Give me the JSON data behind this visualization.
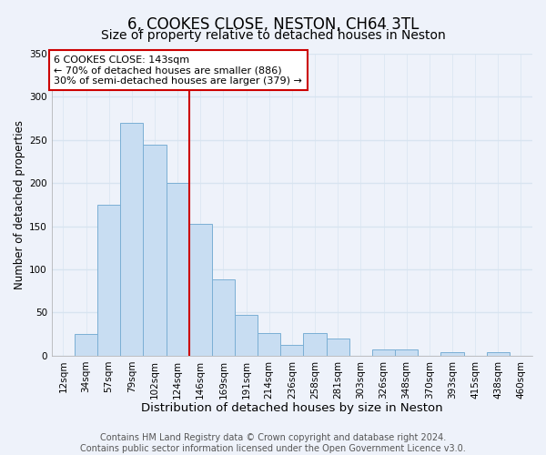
{
  "title": "6, COOKES CLOSE, NESTON, CH64 3TL",
  "subtitle": "Size of property relative to detached houses in Neston",
  "xlabel": "Distribution of detached houses by size in Neston",
  "ylabel": "Number of detached properties",
  "bin_labels": [
    "12sqm",
    "34sqm",
    "57sqm",
    "79sqm",
    "102sqm",
    "124sqm",
    "146sqm",
    "169sqm",
    "191sqm",
    "214sqm",
    "236sqm",
    "258sqm",
    "281sqm",
    "303sqm",
    "326sqm",
    "348sqm",
    "370sqm",
    "393sqm",
    "415sqm",
    "438sqm",
    "460sqm"
  ],
  "bar_heights": [
    0,
    25,
    175,
    270,
    245,
    200,
    153,
    88,
    47,
    26,
    13,
    26,
    20,
    0,
    7,
    7,
    0,
    4,
    0,
    4,
    0
  ],
  "bar_color": "#c8ddf2",
  "bar_edge_color": "#7bafd4",
  "vline_x": 5.5,
  "vline_color": "#cc0000",
  "ylim": [
    0,
    350
  ],
  "yticks": [
    0,
    50,
    100,
    150,
    200,
    250,
    300,
    350
  ],
  "annotation_title": "6 COOKES CLOSE: 143sqm",
  "annotation_line1": "← 70% of detached houses are smaller (886)",
  "annotation_line2": "30% of semi-detached houses are larger (379) →",
  "annotation_box_color": "#ffffff",
  "annotation_box_edge": "#cc0000",
  "footer1": "Contains HM Land Registry data © Crown copyright and database right 2024.",
  "footer2": "Contains public sector information licensed under the Open Government Licence v3.0.",
  "bg_color": "#eef2fa",
  "plot_bg_color": "#eef2fa",
  "grid_color": "#d8e4f0",
  "title_fontsize": 12,
  "subtitle_fontsize": 10,
  "xlabel_fontsize": 9.5,
  "ylabel_fontsize": 8.5,
  "tick_fontsize": 7.5,
  "annotation_fontsize": 8,
  "footer_fontsize": 7
}
